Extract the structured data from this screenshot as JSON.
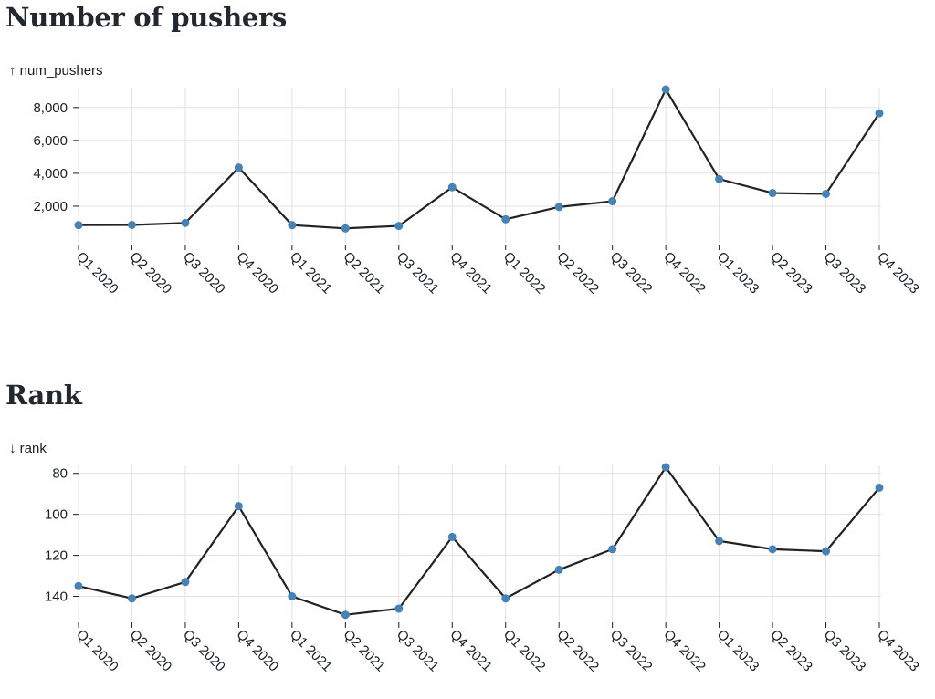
{
  "chart_data": [
    {
      "type": "line",
      "title": "Number of pushers",
      "ylabel": "↑ num_pushers",
      "y_direction": "up",
      "categories": [
        "Q1 2020",
        "Q2 2020",
        "Q3 2020",
        "Q4 2020",
        "Q1 2021",
        "Q2 2021",
        "Q3 2021",
        "Q4 2021",
        "Q1 2022",
        "Q2 2022",
        "Q3 2022",
        "Q4 2022",
        "Q1 2023",
        "Q2 2023",
        "Q3 2023",
        "Q4 2023"
      ],
      "series": [
        {
          "values": [
            850,
            860,
            980,
            4350,
            850,
            650,
            800,
            3150,
            1200,
            1950,
            2300,
            9100,
            3650,
            2800,
            2750,
            7650
          ]
        }
      ],
      "yticks": [
        2000,
        4000,
        6000,
        8000
      ],
      "ytick_labels": [
        "2,000",
        "4,000",
        "6,000",
        "8,000"
      ],
      "ylim": [
        0,
        9100
      ],
      "grid": true,
      "colors": {
        "line": "#222222",
        "point": "#4682b4",
        "grid": "#e2e2e2"
      }
    },
    {
      "type": "line",
      "title": "Rank",
      "ylabel": "↓ rank",
      "y_direction": "down",
      "categories": [
        "Q1 2020",
        "Q2 2020",
        "Q3 2020",
        "Q4 2020",
        "Q1 2021",
        "Q2 2021",
        "Q3 2021",
        "Q4 2021",
        "Q1 2022",
        "Q2 2022",
        "Q3 2022",
        "Q4 2022",
        "Q1 2023",
        "Q2 2023",
        "Q3 2023",
        "Q4 2023"
      ],
      "series": [
        {
          "values": [
            135,
            141,
            133,
            96,
            140,
            149,
            146,
            111,
            141,
            127,
            117,
            77,
            113,
            117,
            118,
            87
          ]
        }
      ],
      "yticks": [
        80,
        100,
        120,
        140
      ],
      "ytick_labels": [
        "80",
        "100",
        "120",
        "140"
      ],
      "ylim": [
        77,
        150
      ],
      "grid": true,
      "colors": {
        "line": "#222222",
        "point": "#4682b4",
        "grid": "#e2e2e2"
      }
    }
  ]
}
